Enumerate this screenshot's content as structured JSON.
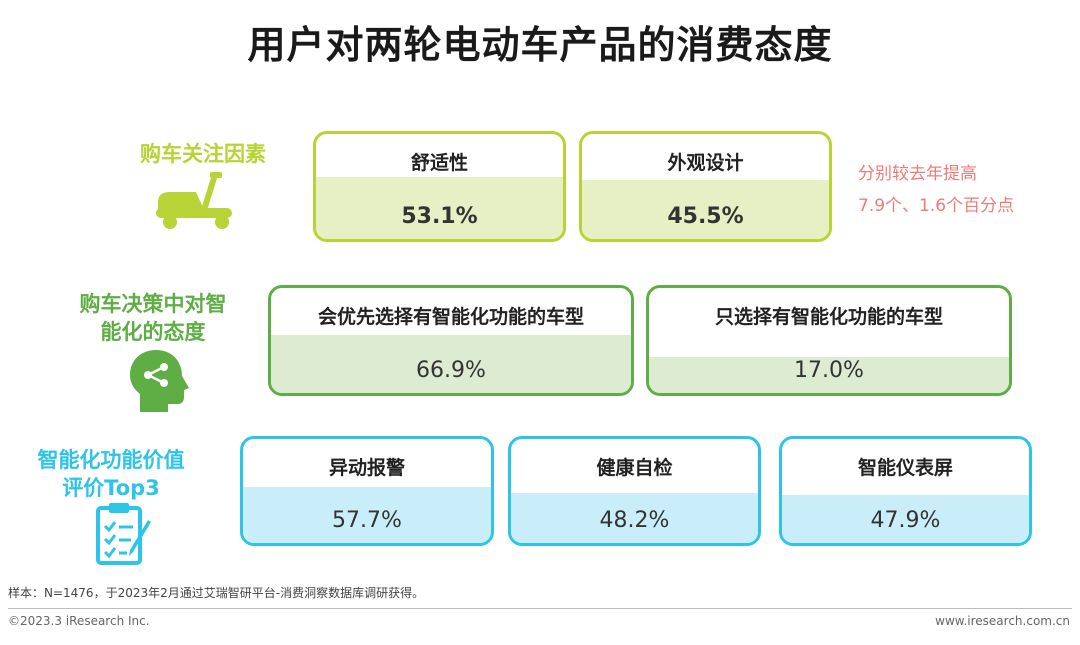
{
  "title": "用户对两轮电动车产品的消费态度",
  "colors": {
    "row1": "#b8d335",
    "row2": "#5fae45",
    "row3": "#2ec4ea",
    "note": "#f07a78"
  },
  "rows": [
    {
      "label": "购车关注因素",
      "icon": "scooter-icon",
      "note": [
        "分别较去年提高",
        "7.9个、1.6个百分点"
      ]
    },
    {
      "label": [
        "购车决策中对智",
        "能化的态度"
      ],
      "icon": "head-profile-icon"
    },
    {
      "label": [
        "智能化功能价值",
        "评价Top3"
      ],
      "icon": "clipboard-checklist-icon"
    }
  ],
  "chart_data": {
    "type": "table",
    "title": "用户对两轮电动车产品的消费态度",
    "groups": [
      {
        "name": "购车关注因素",
        "categories": [
          "舒适性",
          "外观设计"
        ],
        "values": [
          53.1,
          45.5
        ],
        "labels": [
          "53.1%",
          "45.5%"
        ]
      },
      {
        "name": "购车决策中对智能化的态度",
        "categories": [
          "会优先选择有智能化功能的车型",
          "只选择有智能化功能的车型"
        ],
        "values": [
          66.9,
          17.0
        ],
        "labels": [
          "66.9%",
          "17.0%"
        ]
      },
      {
        "name": "智能化功能价值评价Top3",
        "categories": [
          "异动报警",
          "健康自检",
          "智能仪表屏"
        ],
        "values": [
          57.7,
          48.2,
          47.9
        ],
        "labels": [
          "57.7%",
          "48.2%",
          "47.9%"
        ]
      }
    ]
  },
  "footer": {
    "sample": "样本：N=1476，于2023年2月通过艾瑞智研平台-消费洞察数据库调研获得。",
    "copyright": "©2023.3 iResearch Inc.",
    "website": "www.iresearch.com.cn"
  }
}
